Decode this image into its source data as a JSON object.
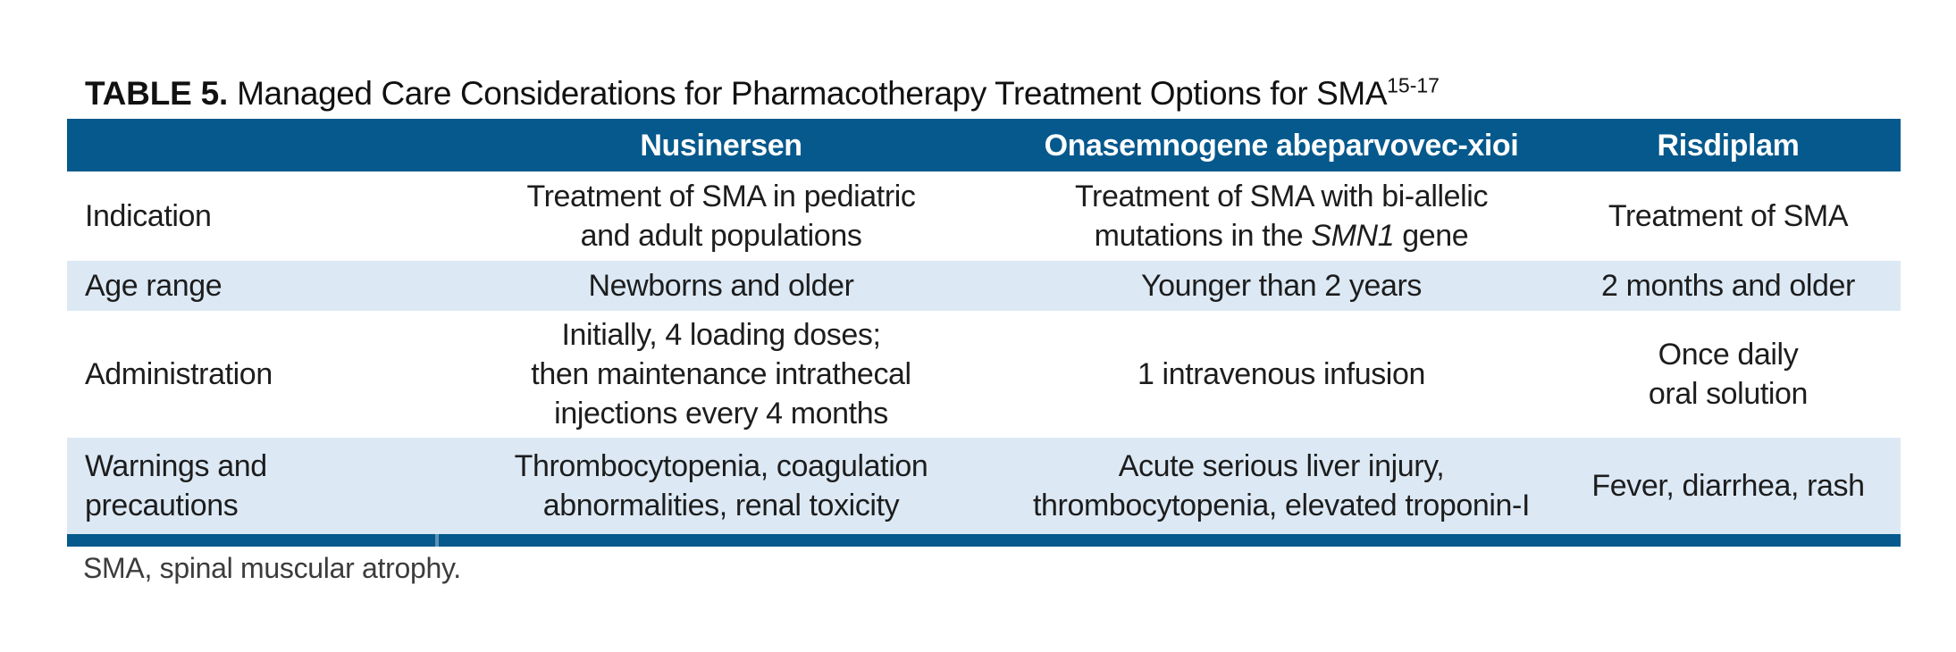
{
  "title": {
    "label": "TABLE 5.",
    "text": "Managed Care Considerations for Pharmacotherapy Treatment Options for SMA",
    "superscript": "15-17"
  },
  "colors": {
    "header_blue": "#05598C",
    "row_shade": "#DCE9F5"
  },
  "table": {
    "columns": [
      "",
      "Nusinersen",
      "Onasemnogene abeparvovec-xioi",
      "Risdiplam"
    ],
    "rows": [
      {
        "header": "Indication",
        "cells": [
          {
            "lines": [
              "Treatment of SMA in pediatric",
              "and adult populations"
            ]
          },
          {
            "lines": [
              "Treatment of SMA with bi-allelic"
            ],
            "line2": {
              "pre": "mutations in the ",
              "italic": "SMN1",
              "post": " gene"
            }
          },
          {
            "lines": [
              "Treatment of SMA"
            ]
          }
        ]
      },
      {
        "header": "Age range",
        "cells": [
          {
            "lines": [
              "Newborns and older"
            ]
          },
          {
            "lines": [
              "Younger than 2 years"
            ]
          },
          {
            "lines": [
              "2 months and older"
            ]
          }
        ]
      },
      {
        "header": "Administration",
        "cells": [
          {
            "lines": [
              "Initially, 4 loading doses;",
              "then maintenance intrathecal",
              "injections every 4 months"
            ]
          },
          {
            "lines": [
              "1 intravenous infusion"
            ]
          },
          {
            "lines": [
              "Once daily",
              "oral solution"
            ]
          }
        ]
      },
      {
        "header_lines": [
          "Warnings and",
          "precautions"
        ],
        "cells": [
          {
            "lines": [
              "Thrombocytopenia, coagulation",
              "abnormalities, renal toxicity"
            ]
          },
          {
            "lines": [
              "Acute serious liver injury,",
              "thrombocytopenia, elevated troponin-I"
            ]
          },
          {
            "lines": [
              "Fever, diarrhea, rash"
            ]
          }
        ]
      }
    ]
  },
  "footnote": "SMA, spinal muscular atrophy."
}
